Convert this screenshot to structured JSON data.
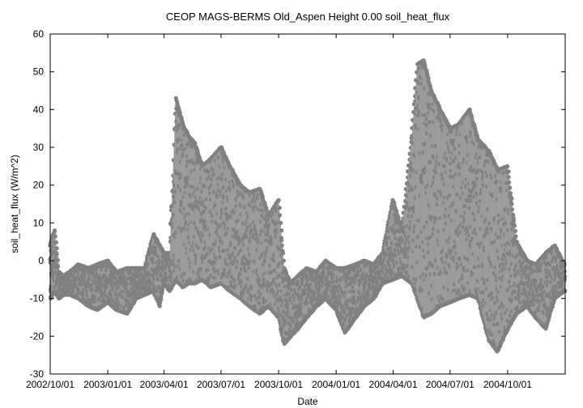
{
  "chart_data": {
    "type": "scatter",
    "title": "CEOP MAGS-BERMS Old_Aspen Height 0.00 soil_heat_flux",
    "xlabel": "Date",
    "ylabel": "soil_heat_flux (W/m^2)",
    "xlim": [
      "2002-10-01",
      "2005-01-01"
    ],
    "ylim": [
      -30,
      60
    ],
    "x_ticks": [
      "2002-10-01",
      "2003-01-01",
      "2003-04-01",
      "2003-07-01",
      "2003-10-01",
      "2004-01-01",
      "2004-04-01",
      "2004-07-01",
      "2004-10-01"
    ],
    "x_tick_labels": [
      "2002/10/01",
      "2003/01/01",
      "2003/04/01",
      "2003/07/01",
      "2003/10/01",
      "2004/01/01",
      "2004/04/01",
      "2004/07/01",
      "2004/10/01"
    ],
    "y_ticks": [
      -30,
      -20,
      -10,
      0,
      10,
      20,
      30,
      40,
      50,
      60
    ],
    "grid": false,
    "legend": "none",
    "marker_color": "#808080",
    "series": [
      {
        "name": "",
        "x": [
          "2002-10-01",
          "2002-10-08",
          "2002-10-15",
          "2002-10-22",
          "2002-11-01",
          "2002-11-15",
          "2002-12-01",
          "2002-12-15",
          "2003-01-01",
          "2003-01-15",
          "2003-02-01",
          "2003-02-15",
          "2003-03-01",
          "2003-03-15",
          "2003-03-25",
          "2003-04-01",
          "2003-04-10",
          "2003-04-20",
          "2003-05-01",
          "2003-05-10",
          "2003-05-20",
          "2003-06-01",
          "2003-06-15",
          "2003-07-01",
          "2003-07-15",
          "2003-08-01",
          "2003-08-15",
          "2003-09-01",
          "2003-09-15",
          "2003-10-01",
          "2003-10-10",
          "2003-10-20",
          "2003-11-01",
          "2003-11-15",
          "2003-12-01",
          "2003-12-15",
          "2004-01-01",
          "2004-01-15",
          "2004-02-01",
          "2004-02-15",
          "2004-03-01",
          "2004-03-15",
          "2004-04-01",
          "2004-04-15",
          "2004-05-01",
          "2004-05-10",
          "2004-05-20",
          "2004-06-01",
          "2004-06-15",
          "2004-07-01",
          "2004-07-15",
          "2004-08-01",
          "2004-08-15",
          "2004-09-01",
          "2004-09-15",
          "2004-10-01",
          "2004-10-15",
          "2004-11-01",
          "2004-11-15",
          "2004-12-01",
          "2004-12-15",
          "2004-12-31"
        ],
        "y_max": [
          4,
          8,
          -3,
          -4,
          -3,
          -1,
          -2,
          -1,
          0,
          -3,
          -2,
          -2,
          -2,
          7,
          4,
          2,
          2,
          43,
          36,
          33,
          31,
          25,
          27,
          30,
          25,
          20,
          18,
          19,
          12,
          16,
          -2,
          -6,
          -4,
          -2,
          -3,
          0,
          -2,
          -2,
          -1,
          0,
          -1,
          2,
          16,
          8,
          33,
          52,
          53,
          45,
          40,
          35,
          36,
          40,
          32,
          29,
          24,
          25,
          5,
          0,
          -1,
          2,
          4,
          -1
        ],
        "y_min": [
          -10,
          -8,
          -10,
          -9,
          -9,
          -10,
          -12,
          -13,
          -11,
          -13,
          -14,
          -10,
          -9,
          -8,
          -12,
          -6,
          -8,
          -5,
          -7,
          -6,
          -6,
          -5,
          -7,
          -6,
          -8,
          -10,
          -12,
          -14,
          -12,
          -15,
          -22,
          -20,
          -18,
          -15,
          -12,
          -10,
          -13,
          -19,
          -15,
          -12,
          -10,
          -6,
          -5,
          -4,
          -6,
          -10,
          -15,
          -14,
          -12,
          -11,
          -10,
          -9,
          -10,
          -21,
          -24,
          -18,
          -14,
          -12,
          -15,
          -18,
          -10,
          -8
        ]
      }
    ]
  }
}
